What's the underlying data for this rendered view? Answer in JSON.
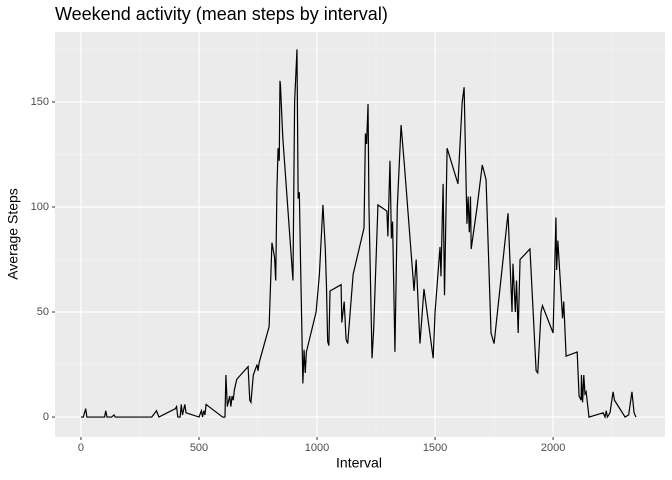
{
  "chart_data": {
    "type": "line",
    "title": "Weekend activity (mean steps by interval)",
    "x_label": "Interval",
    "y_label": "Average Steps",
    "x": [
      0,
      10,
      20,
      25,
      100,
      105,
      110,
      130,
      140,
      145,
      200,
      300,
      320,
      330,
      400,
      405,
      410,
      420,
      425,
      430,
      440,
      445,
      500,
      510,
      515,
      520,
      525,
      530,
      600,
      610,
      614,
      620,
      630,
      635,
      640,
      645,
      650,
      660,
      708,
      715,
      720,
      730,
      746,
      750,
      755,
      797,
      809,
      820,
      825,
      830,
      835,
      840,
      843,
      845,
      855,
      898,
      905,
      915,
      920,
      925,
      930,
      940,
      945,
      950,
      955,
      996,
      1000,
      1010,
      1025,
      1035,
      1040,
      1045,
      1050,
      1055,
      1102,
      1105,
      1115,
      1123,
      1130,
      1153,
      1199,
      1205,
      1210,
      1216,
      1220,
      1233,
      1240,
      1258,
      1296,
      1300,
      1309,
      1315,
      1320,
      1330,
      1340,
      1356,
      1370,
      1411,
      1420,
      1436,
      1453,
      1492,
      1500,
      1521,
      1525,
      1534,
      1540,
      1551,
      1597,
      1615,
      1623,
      1635,
      1640,
      1645,
      1650,
      1653,
      1678,
      1700,
      1716,
      1737,
      1750,
      1809,
      1826,
      1830,
      1840,
      1845,
      1852,
      1860,
      1902,
      1928,
      1935,
      1949,
      1955,
      2000,
      2012,
      2015,
      2020,
      2040,
      2045,
      2055,
      2102,
      2110,
      2119,
      2120,
      2125,
      2130,
      2135,
      2140,
      2152,
      2212,
      2220,
      2225,
      2230,
      2241,
      2254,
      2260,
      2305,
      2320,
      2334,
      2343,
      2351
    ],
    "values": [
      0,
      0,
      4,
      0,
      0,
      3,
      0,
      0,
      1,
      0,
      0,
      0,
      3,
      0,
      4,
      5,
      0,
      0,
      6,
      1,
      6,
      2,
      0,
      3,
      0,
      3,
      1,
      6,
      0,
      0,
      20,
      5,
      10,
      5,
      10,
      8,
      13,
      18,
      24,
      8,
      7,
      20,
      25,
      22,
      26,
      43,
      83,
      76,
      65,
      108,
      128,
      122,
      160,
      158,
      133,
      65,
      150,
      175,
      104,
      107,
      75,
      16,
      32,
      21,
      31,
      50,
      55,
      68,
      101,
      80,
      62,
      36,
      34,
      60,
      63,
      45,
      55,
      37,
      35,
      68,
      90,
      135,
      130,
      149,
      100,
      28,
      42,
      101,
      98,
      86,
      122,
      85,
      93,
      31,
      100,
      139,
      120,
      60,
      75,
      35,
      61,
      28,
      50,
      81,
      67,
      111,
      58,
      128,
      111,
      150,
      157,
      92,
      105,
      88,
      105,
      80,
      100,
      120,
      113,
      40,
      35,
      97,
      50,
      73,
      50,
      65,
      40,
      75,
      80,
      22,
      21,
      50,
      53,
      40,
      95,
      70,
      84,
      47,
      55,
      29,
      31,
      10,
      8,
      20,
      7,
      20,
      11,
      12,
      0,
      2,
      0,
      3,
      0,
      2,
      12,
      8,
      0,
      1,
      12,
      2,
      0
    ],
    "color": "#000000",
    "xlim": [
      -110,
      2474
    ],
    "ylim": [
      -9.5,
      183.3
    ],
    "xticks": [
      0,
      500,
      1000,
      1500,
      2000
    ],
    "yticks": [
      0,
      50,
      100,
      150
    ],
    "grid": true
  }
}
